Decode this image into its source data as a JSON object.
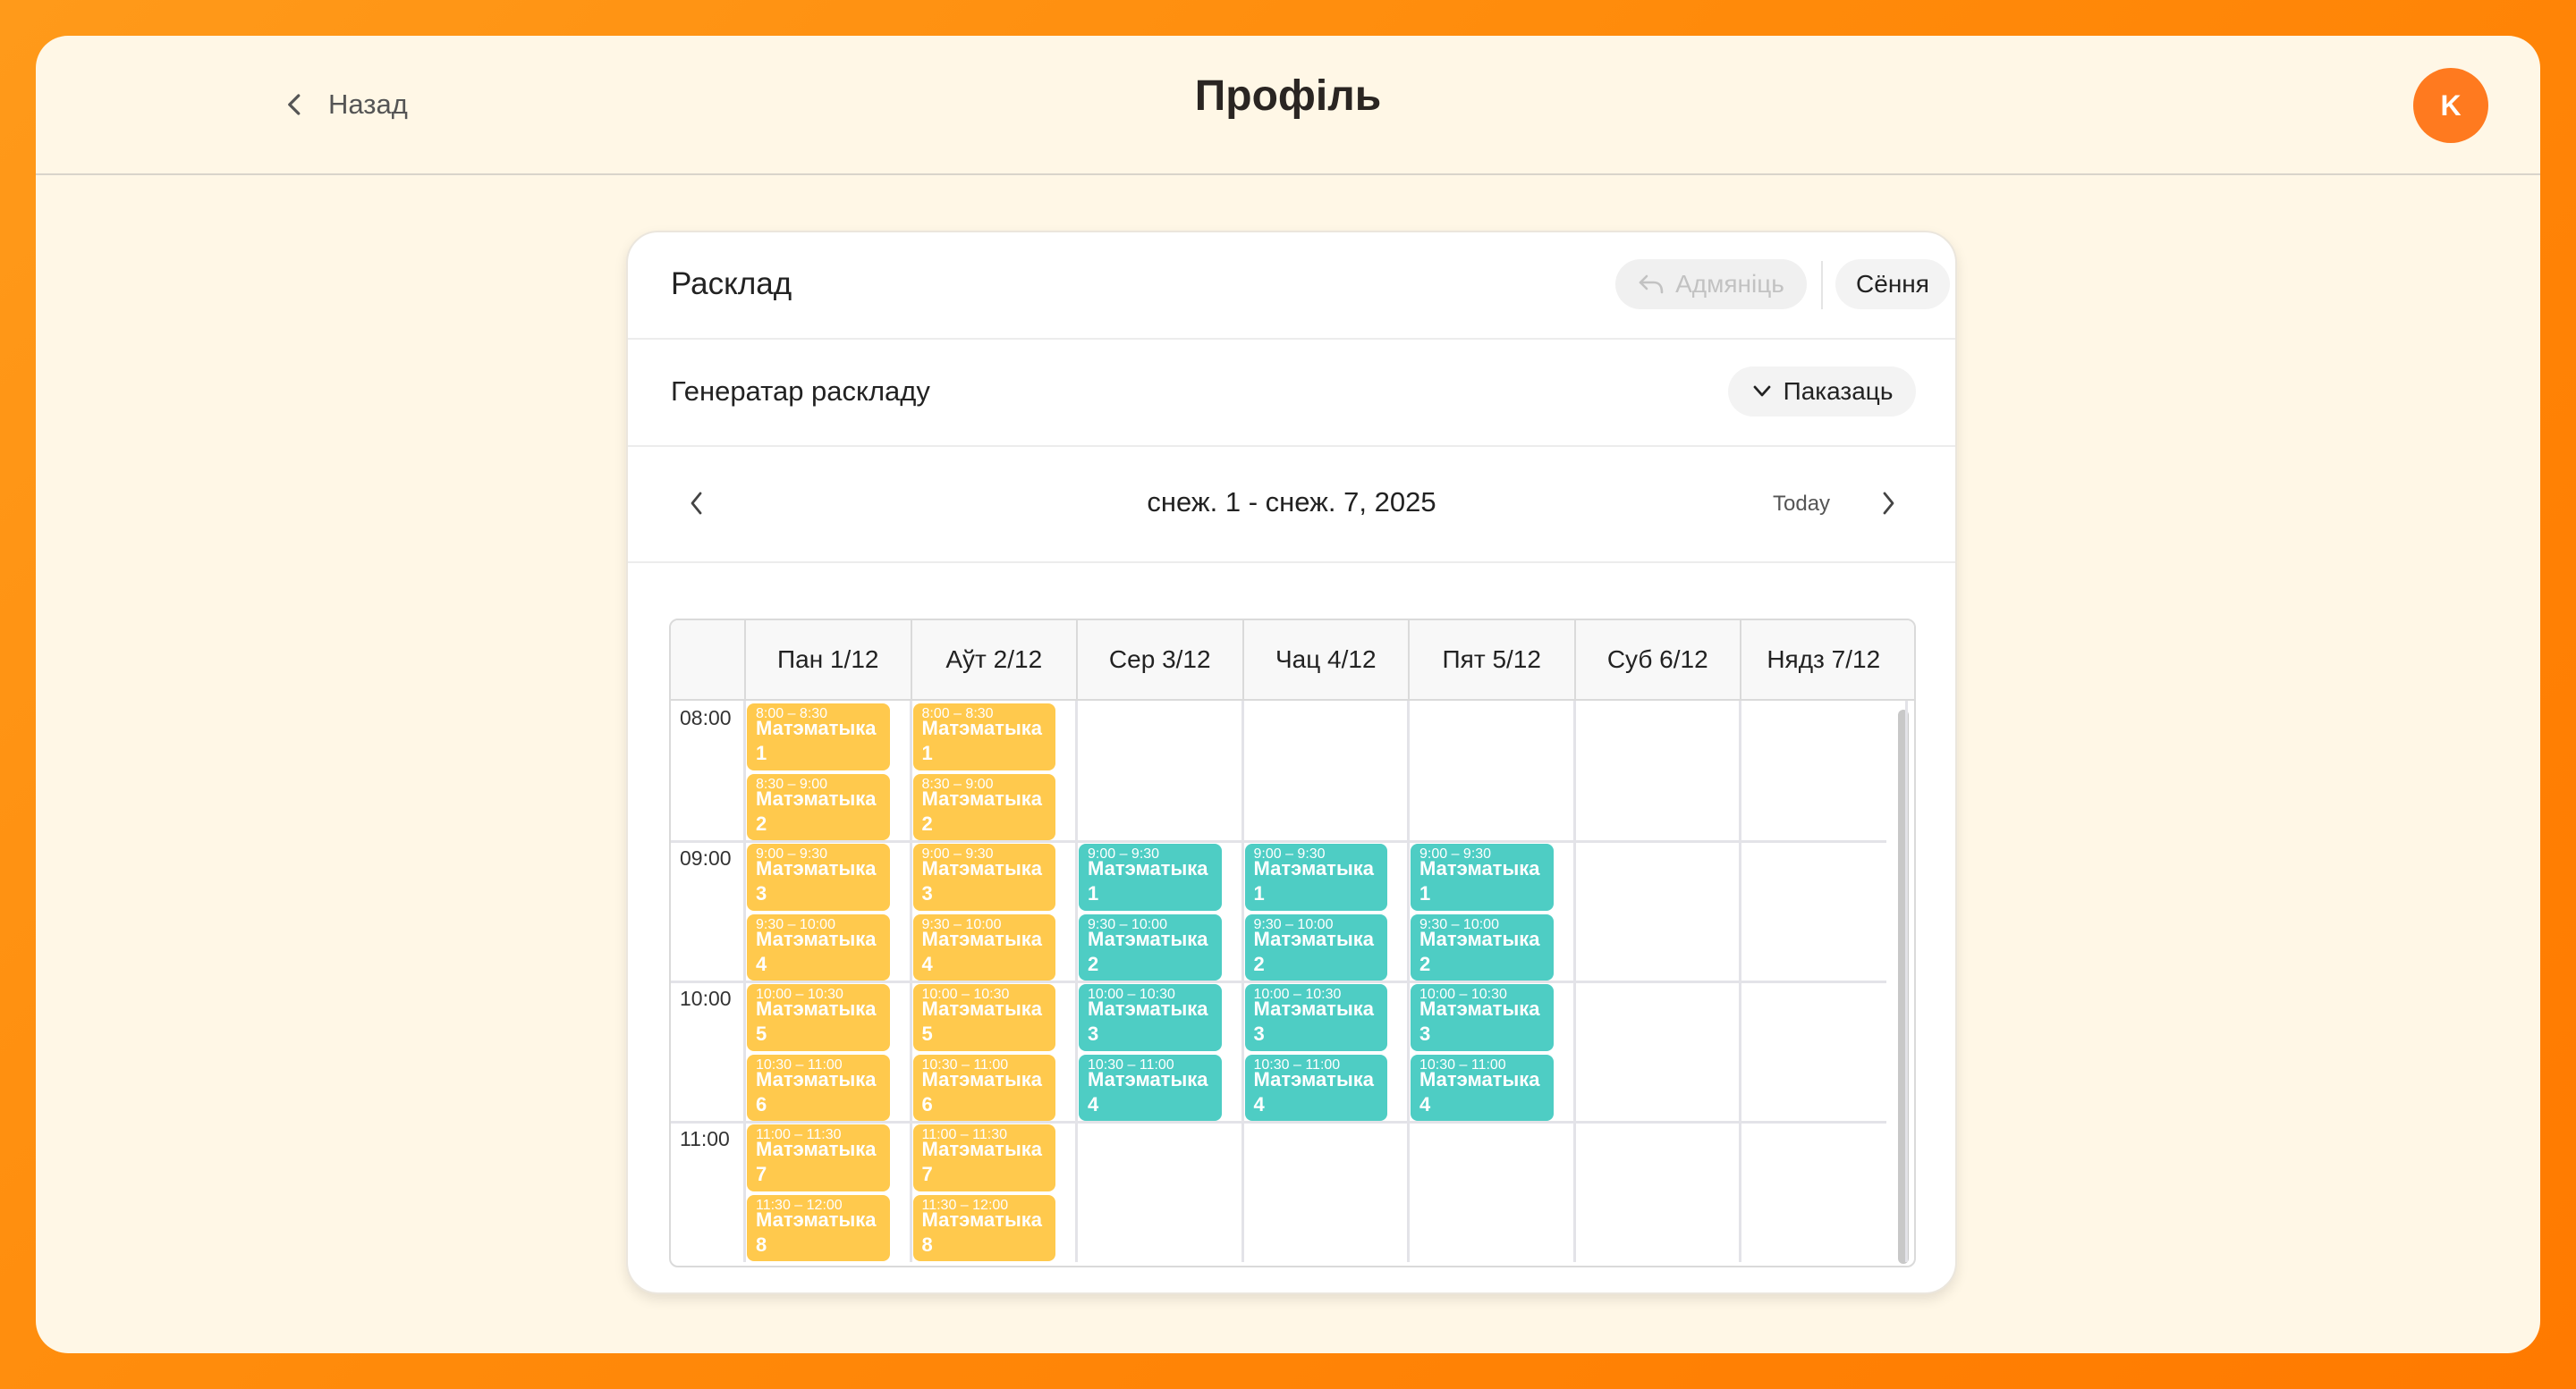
{
  "header": {
    "back_label": "Назад",
    "title": "Профіль",
    "avatar_initial": "K",
    "accent": "#ff7a1f"
  },
  "schedule": {
    "title": "Расклад",
    "admin_button": "Адмяніць",
    "today_button": "Сёння",
    "generator_label": "Генератар раскладу",
    "show_button": "Паказаць",
    "date_range": "снеж. 1 - снеж. 7, 2025",
    "today_link": "Today",
    "days": [
      "Пан 1/12",
      "Аўт 2/12",
      "Сер 3/12",
      "Чац 4/12",
      "Пят 5/12",
      "Суб 6/12",
      "Нядз 7/12"
    ],
    "times": [
      "08:00",
      "09:00",
      "10:00",
      "11:00"
    ],
    "colors": {
      "monday_tuesday": "#ffc94d",
      "wed_fri": "#4ecdc4"
    },
    "events": [
      {
        "day": 0,
        "slot": 0,
        "time": "8:00 – 8:30",
        "title": "Матэматыка 1",
        "color": "y"
      },
      {
        "day": 0,
        "slot": 1,
        "time": "8:30 – 9:00",
        "title": "Матэматыка 2",
        "color": "y"
      },
      {
        "day": 0,
        "slot": 2,
        "time": "9:00 – 9:30",
        "title": "Матэматыка 3",
        "color": "y"
      },
      {
        "day": 0,
        "slot": 3,
        "time": "9:30 – 10:00",
        "title": "Матэматыка 4",
        "color": "y"
      },
      {
        "day": 0,
        "slot": 4,
        "time": "10:00 – 10:30",
        "title": "Матэматыка 5",
        "color": "y"
      },
      {
        "day": 0,
        "slot": 5,
        "time": "10:30 – 11:00",
        "title": "Матэматыка 6",
        "color": "y"
      },
      {
        "day": 0,
        "slot": 6,
        "time": "11:00 – 11:30",
        "title": "Матэматыка 7",
        "color": "y"
      },
      {
        "day": 0,
        "slot": 7,
        "time": "11:30 – 12:00",
        "title": "Матэматыка 8",
        "color": "y"
      },
      {
        "day": 1,
        "slot": 0,
        "time": "8:00 – 8:30",
        "title": "Матэматыка 1",
        "color": "y"
      },
      {
        "day": 1,
        "slot": 1,
        "time": "8:30 – 9:00",
        "title": "Матэматыка 2",
        "color": "y"
      },
      {
        "day": 1,
        "slot": 2,
        "time": "9:00 – 9:30",
        "title": "Матэматыка 3",
        "color": "y"
      },
      {
        "day": 1,
        "slot": 3,
        "time": "9:30 – 10:00",
        "title": "Матэматыка 4",
        "color": "y"
      },
      {
        "day": 1,
        "slot": 4,
        "time": "10:00 – 10:30",
        "title": "Матэматыка 5",
        "color": "y"
      },
      {
        "day": 1,
        "slot": 5,
        "time": "10:30 – 11:00",
        "title": "Матэматыка 6",
        "color": "y"
      },
      {
        "day": 1,
        "slot": 6,
        "time": "11:00 – 11:30",
        "title": "Матэматыка 7",
        "color": "y"
      },
      {
        "day": 1,
        "slot": 7,
        "time": "11:30 – 12:00",
        "title": "Матэматыка 8",
        "color": "y"
      },
      {
        "day": 2,
        "slot": 2,
        "time": "9:00 – 9:30",
        "title": "Матэматыка 1",
        "color": "t"
      },
      {
        "day": 2,
        "slot": 3,
        "time": "9:30 – 10:00",
        "title": "Матэматыка 2",
        "color": "t"
      },
      {
        "day": 2,
        "slot": 4,
        "time": "10:00 – 10:30",
        "title": "Матэматыка 3",
        "color": "t"
      },
      {
        "day": 2,
        "slot": 5,
        "time": "10:30 – 11:00",
        "title": "Матэматыка 4",
        "color": "t"
      },
      {
        "day": 3,
        "slot": 2,
        "time": "9:00 – 9:30",
        "title": "Матэматыка 1",
        "color": "t"
      },
      {
        "day": 3,
        "slot": 3,
        "time": "9:30 – 10:00",
        "title": "Матэматыка 2",
        "color": "t"
      },
      {
        "day": 3,
        "slot": 4,
        "time": "10:00 – 10:30",
        "title": "Матэматыка 3",
        "color": "t"
      },
      {
        "day": 3,
        "slot": 5,
        "time": "10:30 – 11:00",
        "title": "Матэматыка 4",
        "color": "t"
      },
      {
        "day": 4,
        "slot": 2,
        "time": "9:00 – 9:30",
        "title": "Матэматыка 1",
        "color": "t"
      },
      {
        "day": 4,
        "slot": 3,
        "time": "9:30 – 10:00",
        "title": "Матэматыка 2",
        "color": "t"
      },
      {
        "day": 4,
        "slot": 4,
        "time": "10:00 – 10:30",
        "title": "Матэматыка 3",
        "color": "t"
      },
      {
        "day": 4,
        "slot": 5,
        "time": "10:30 – 11:00",
        "title": "Матэматыка 4",
        "color": "t"
      }
    ]
  }
}
